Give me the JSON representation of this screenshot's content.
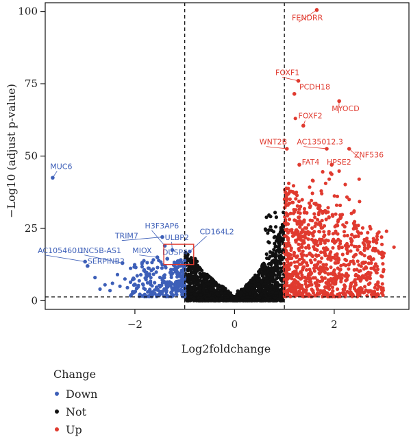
{
  "chart_data": {
    "type": "scatter",
    "title": "",
    "xlabel": "Log2foldchange",
    "ylabel": "−Log10 (adjust p-value)",
    "xlim": [
      -3.8,
      3.5
    ],
    "ylim": [
      -3,
      103
    ],
    "x_ticks": [
      -2,
      0,
      2
    ],
    "x_tick_labels": [
      "−2",
      "0",
      "2"
    ],
    "y_ticks": [
      0,
      25,
      50,
      75,
      100
    ],
    "thresholds": {
      "x": [
        -1,
        1
      ],
      "y": 1.3
    },
    "colors": {
      "Down": "#3d5fb8",
      "Not": "#111111",
      "Up": "#e03a2f",
      "highlight_box": "#e03a2f"
    },
    "legend": {
      "title": "Change",
      "position": "bottom-left",
      "entries": [
        "Down",
        "Not",
        "Up"
      ]
    },
    "labeled_genes": [
      {
        "gene": "FENDRR",
        "x": 1.65,
        "y": 100.5,
        "group": "Up"
      },
      {
        "gene": "FOXF1",
        "x": 1.28,
        "y": 76,
        "group": "Up"
      },
      {
        "gene": "PCDH18",
        "x": 1.2,
        "y": 71.5,
        "group": "Up"
      },
      {
        "gene": "MYOCD",
        "x": 2.1,
        "y": 69,
        "group": "Up"
      },
      {
        "gene": "FOXF2",
        "x": 1.38,
        "y": 60.5,
        "group": "Up"
      },
      {
        "gene": "WNT2B",
        "x": 1.05,
        "y": 52.5,
        "group": "Up"
      },
      {
        "gene": "AC135012.3",
        "x": 1.85,
        "y": 52.5,
        "group": "Up"
      },
      {
        "gene": "ZNF536",
        "x": 2.3,
        "y": 52.5,
        "group": "Up"
      },
      {
        "gene": "FAT4",
        "x": 1.3,
        "y": 47,
        "group": "Up"
      },
      {
        "gene": "HPSE2",
        "x": 1.95,
        "y": 47,
        "group": "Up"
      },
      {
        "gene": "MUC6",
        "x": -3.65,
        "y": 42.5,
        "group": "Down"
      },
      {
        "gene": "H3F3AP6",
        "x": -1.4,
        "y": 19,
        "group": "Down"
      },
      {
        "gene": "CD164L2",
        "x": -0.9,
        "y": 17,
        "group": "Down"
      },
      {
        "gene": "TRIM7",
        "x": -1.45,
        "y": 22,
        "group": "Down"
      },
      {
        "gene": "ULBP2",
        "x": -1.25,
        "y": 17.5,
        "group": "Down"
      },
      {
        "gene": "MIOX",
        "x": -1.55,
        "y": 15,
        "group": "Down"
      },
      {
        "gene": "DUSP4",
        "x": -1.35,
        "y": 14.5,
        "group": "Down"
      },
      {
        "gene": "AC105460.1",
        "x": -3.0,
        "y": 13.5,
        "group": "Down"
      },
      {
        "gene": "UNC5B-AS1",
        "x": -2.25,
        "y": 13,
        "group": "Down"
      },
      {
        "gene": "SERPINB2",
        "x": -2.95,
        "y": 12,
        "group": "Down"
      }
    ]
  }
}
